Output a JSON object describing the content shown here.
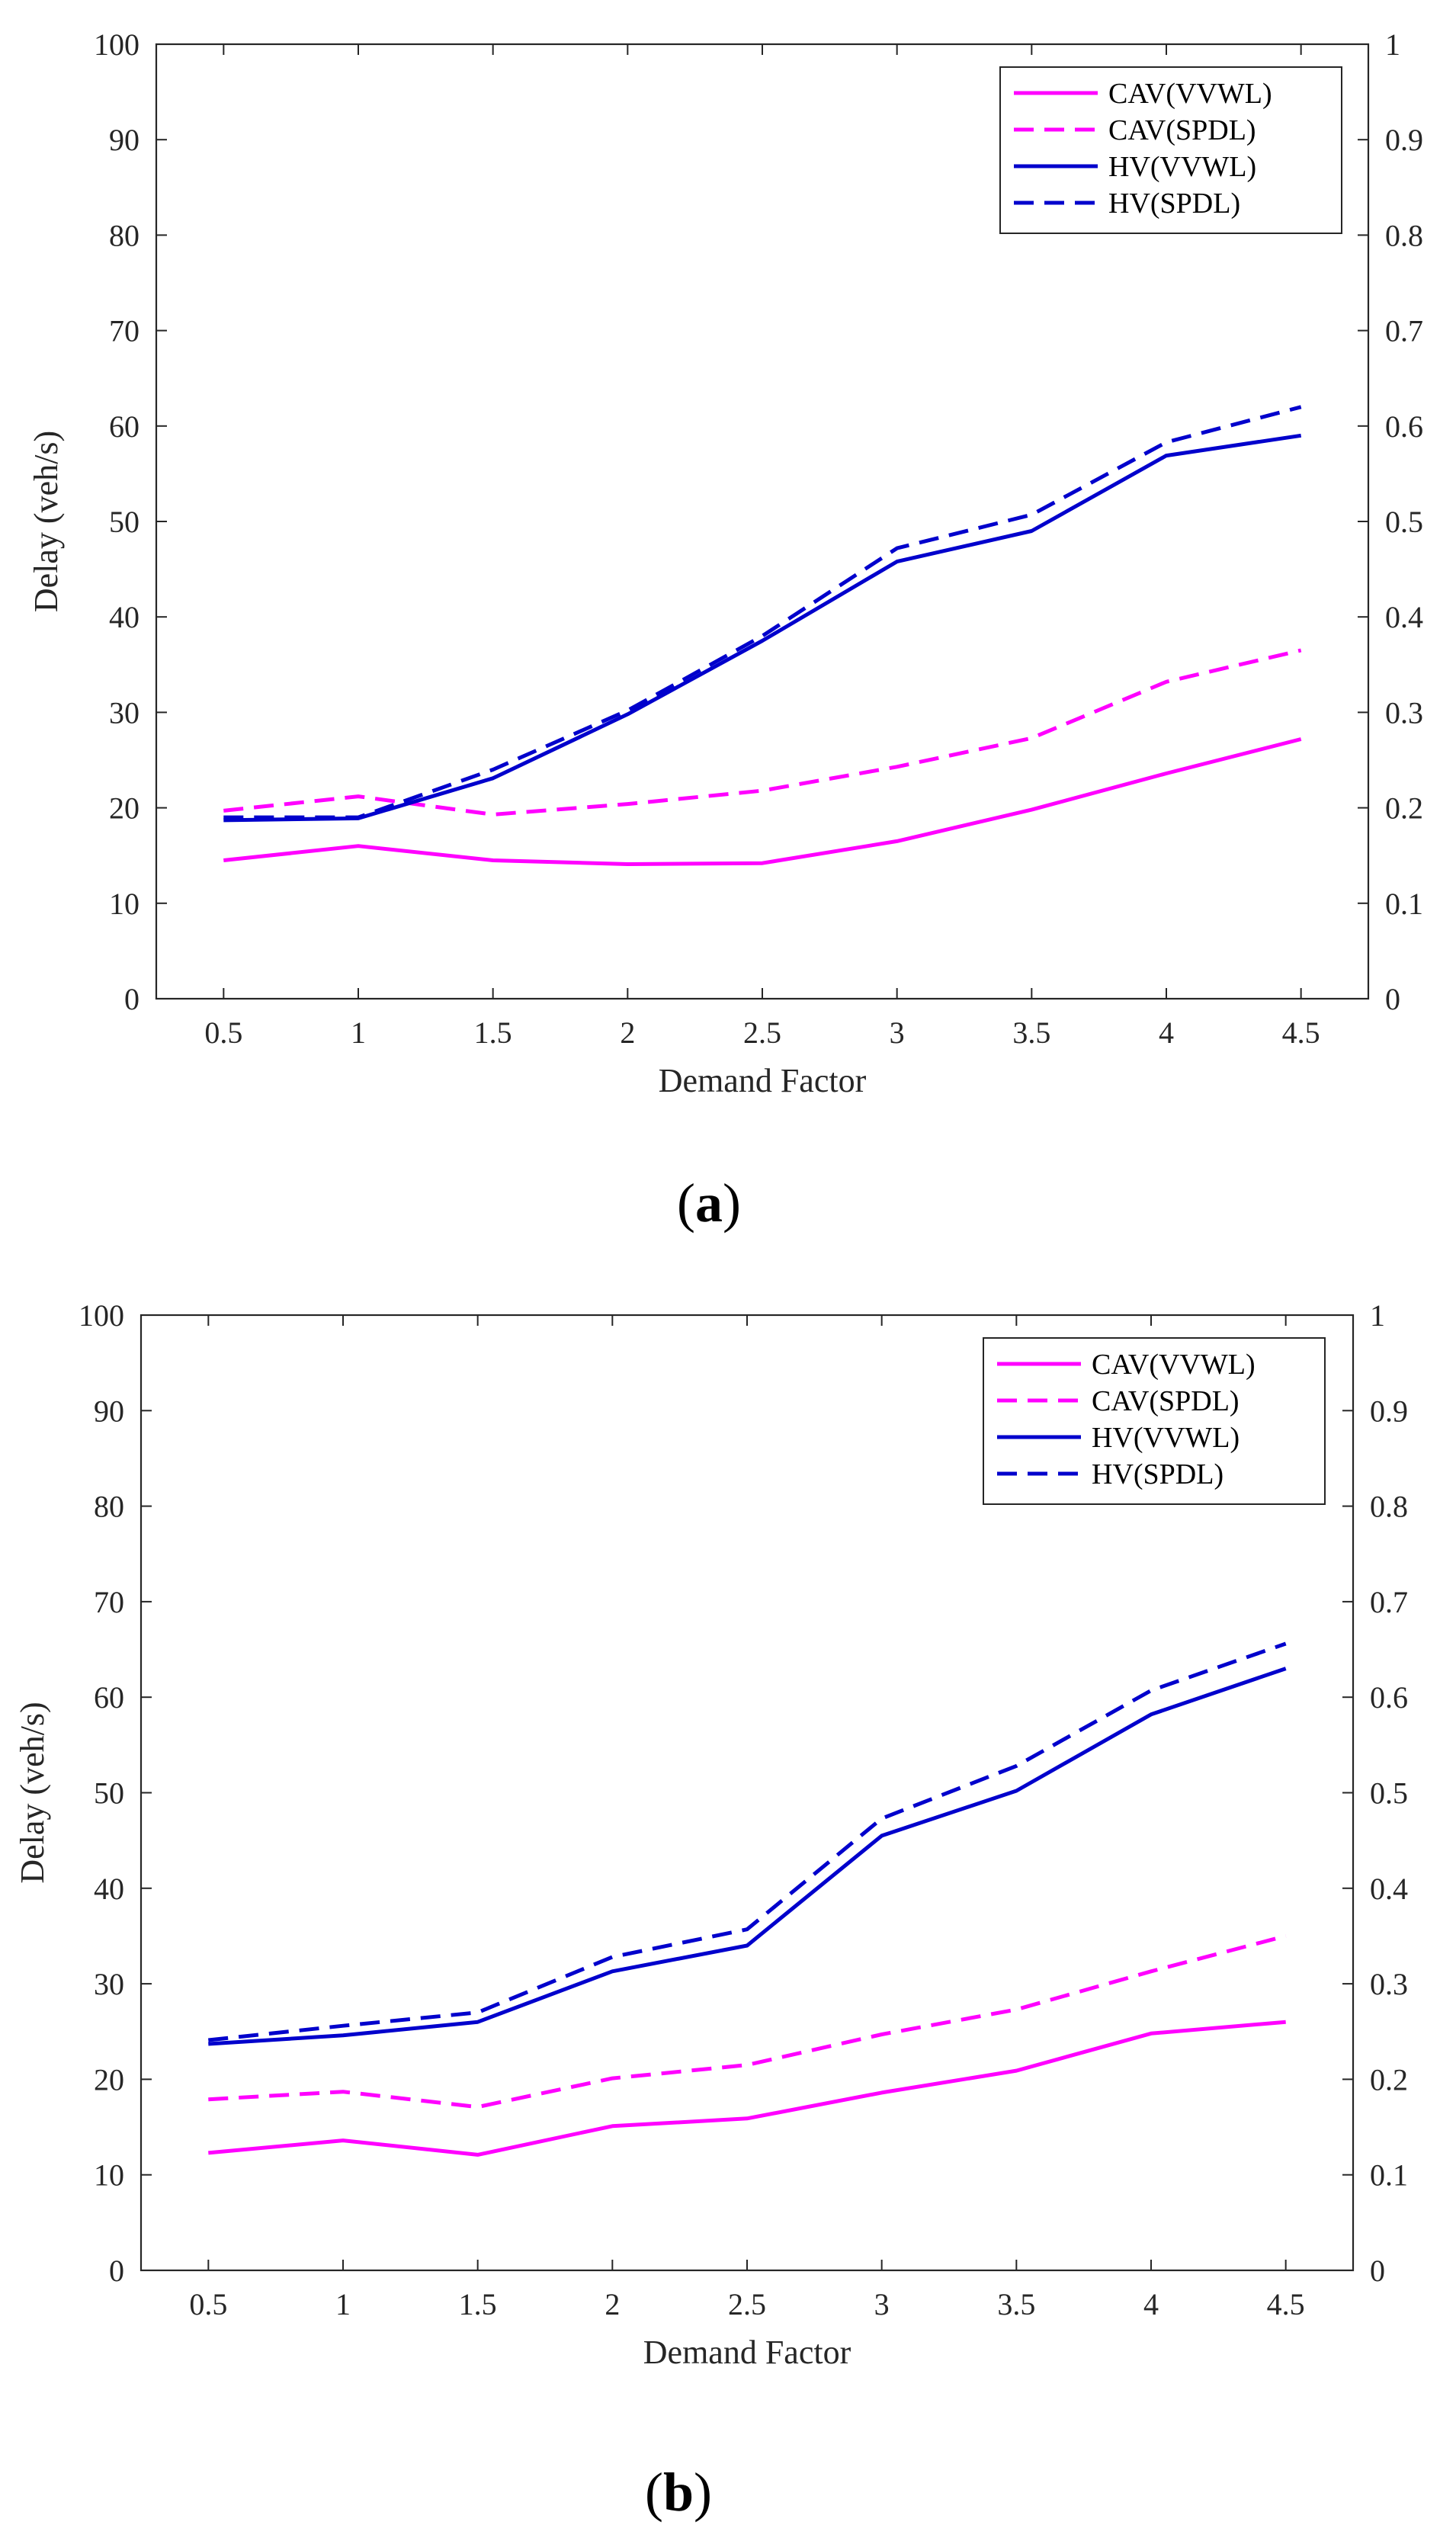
{
  "chart_data": [
    {
      "type": "line",
      "panel": "a",
      "categories": [
        "0.5",
        "1",
        "1.5",
        "2",
        "2.5",
        "3",
        "3.5",
        "4",
        "4.5"
      ],
      "x": [
        0.5,
        1,
        1.5,
        2,
        2.5,
        3,
        3.5,
        4,
        4.5
      ],
      "xlabel": "Demand Factor",
      "ylabel": "Delay (veh/s)",
      "xlim": [
        0.25,
        4.75
      ],
      "ylim": [
        0,
        100
      ],
      "y2lim": [
        0,
        1
      ],
      "yticks": [
        "0",
        "10",
        "20",
        "30",
        "40",
        "50",
        "60",
        "70",
        "80",
        "90",
        "100"
      ],
      "y2ticks": [
        "0",
        "0.1",
        "0.2",
        "0.3",
        "0.4",
        "0.5",
        "0.6",
        "0.7",
        "0.8",
        "0.9",
        "1"
      ],
      "legend_position": "top-right",
      "grid": false,
      "series": [
        {
          "name": "CAV(VVWL)",
          "color": "#ff00ff",
          "style": "solid",
          "values": [
            14.5,
            16,
            14.5,
            14.1,
            14.2,
            16.5,
            19.8,
            23.6,
            27.2
          ]
        },
        {
          "name": "CAV(SPDL)",
          "color": "#ff00ff",
          "style": "dashed",
          "values": [
            19.7,
            21.2,
            19.3,
            20.4,
            21.8,
            24.3,
            27.3,
            33.2,
            36.5
          ]
        },
        {
          "name": "HV(VVWL)",
          "color": "#0000cc",
          "style": "solid",
          "values": [
            18.7,
            18.9,
            23.1,
            29.8,
            37.5,
            45.8,
            49,
            56.9,
            59
          ]
        },
        {
          "name": "HV(SPDL)",
          "color": "#0000cc",
          "style": "dashed",
          "values": [
            19,
            19,
            24,
            30.2,
            38,
            47.2,
            50.7,
            58.3,
            62
          ]
        }
      ]
    },
    {
      "type": "line",
      "panel": "b",
      "categories": [
        "0.5",
        "1",
        "1.5",
        "2",
        "2.5",
        "3",
        "3.5",
        "4",
        "4.5"
      ],
      "x": [
        0.5,
        1,
        1.5,
        2,
        2.5,
        3,
        3.5,
        4,
        4.5
      ],
      "xlabel": "Demand Factor",
      "ylabel": "Delay (veh/s)",
      "xlim": [
        0.25,
        4.75
      ],
      "ylim": [
        0,
        100
      ],
      "y2lim": [
        0,
        1
      ],
      "yticks": [
        "0",
        "10",
        "20",
        "30",
        "40",
        "50",
        "60",
        "70",
        "80",
        "90",
        "100"
      ],
      "y2ticks": [
        "0",
        "0.1",
        "0.2",
        "0.3",
        "0.4",
        "0.5",
        "0.6",
        "0.7",
        "0.8",
        "0.9",
        "1"
      ],
      "legend_position": "top-right",
      "grid": false,
      "series": [
        {
          "name": "CAV(VVWL)",
          "color": "#ff00ff",
          "style": "solid",
          "values": [
            12.3,
            13.6,
            12.1,
            15.1,
            15.9,
            18.6,
            20.9,
            24.8,
            26
          ]
        },
        {
          "name": "CAV(SPDL)",
          "color": "#ff00ff",
          "style": "dashed",
          "values": [
            17.9,
            18.7,
            17.1,
            20.1,
            21.5,
            24.7,
            27.3,
            31.3,
            35
          ]
        },
        {
          "name": "HV(VVWL)",
          "color": "#0000cc",
          "style": "solid",
          "values": [
            23.7,
            24.6,
            26,
            31.3,
            34,
            45.5,
            50.2,
            58.2,
            63
          ]
        },
        {
          "name": "HV(SPDL)",
          "color": "#0000cc",
          "style": "dashed",
          "values": [
            24.1,
            25.6,
            27,
            32.8,
            35.7,
            47.3,
            52.8,
            60.7,
            65.6
          ]
        }
      ]
    }
  ],
  "panel_labels": [
    {
      "open": "(",
      "letter": "a",
      "close": ")"
    },
    {
      "open": "(",
      "letter": "b",
      "close": ")"
    }
  ]
}
